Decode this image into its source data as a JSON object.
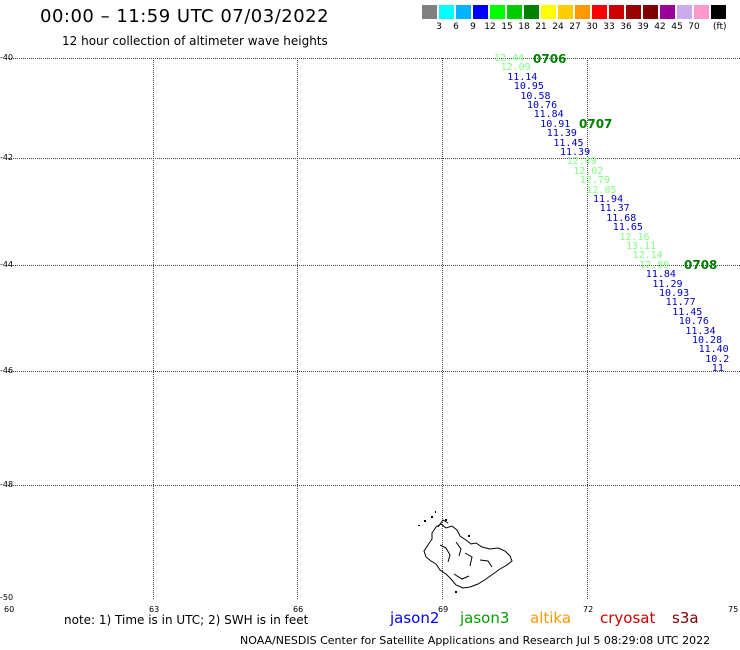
{
  "title": "00:00 – 11:59 UTC 07/03/2022",
  "subtitle": "12 hour collection of altimeter wave heights",
  "color_scale": {
    "colors": [
      "#808080",
      "#00ffff",
      "#00b4ff",
      "#0000ff",
      "#00ff00",
      "#00cc00",
      "#008000",
      "#ffff00",
      "#ffcc00",
      "#ff9900",
      "#ff0000",
      "#cc0000",
      "#990000",
      "#800000",
      "#990099",
      "#ccaaee",
      "#ff99cc",
      "#000000"
    ],
    "labels": [
      "3",
      "6",
      "9",
      "12",
      "15",
      "18",
      "21",
      "24",
      "27",
      "30",
      "33",
      "36",
      "39",
      "42",
      "45",
      "70"
    ],
    "unit": "(ft)"
  },
  "axes": {
    "lat_labels": [
      "-40",
      "-42",
      "-44",
      "-46",
      "-48",
      "-50"
    ],
    "lon_labels": [
      "60",
      "63",
      "66",
      "69",
      "72",
      "75"
    ]
  },
  "track_values": [
    {
      "v": "12.44",
      "c": "#80ff80"
    },
    {
      "v": "12.09",
      "c": "#80ff80"
    },
    {
      "v": "11.14",
      "c": "#0000c0"
    },
    {
      "v": "10.95",
      "c": "#0000c0"
    },
    {
      "v": "10.58",
      "c": "#0000c0"
    },
    {
      "v": "10.76",
      "c": "#0000c0"
    },
    {
      "v": "11.84",
      "c": "#0000c0"
    },
    {
      "v": "10.91",
      "c": "#0000c0"
    },
    {
      "v": "11.39",
      "c": "#0000c0"
    },
    {
      "v": "11.45",
      "c": "#0000c0"
    },
    {
      "v": "11.39",
      "c": "#0000c0"
    },
    {
      "v": "12.49",
      "c": "#80ff80"
    },
    {
      "v": "12.02",
      "c": "#80ff80"
    },
    {
      "v": "12.79",
      "c": "#80ff80"
    },
    {
      "v": "12.05",
      "c": "#80ff80"
    },
    {
      "v": "11.94",
      "c": "#0000c0"
    },
    {
      "v": "11.37",
      "c": "#0000c0"
    },
    {
      "v": "11.68",
      "c": "#0000c0"
    },
    {
      "v": "11.65",
      "c": "#0000c0"
    },
    {
      "v": "12.16",
      "c": "#80ff80"
    },
    {
      "v": "13.11",
      "c": "#80ff80"
    },
    {
      "v": "12.14",
      "c": "#80ff80"
    },
    {
      "v": "12.89",
      "c": "#80ff80"
    },
    {
      "v": "11.84",
      "c": "#0000c0"
    },
    {
      "v": "11.29",
      "c": "#0000c0"
    },
    {
      "v": "10.93",
      "c": "#0000c0"
    },
    {
      "v": "11.77",
      "c": "#0000c0"
    },
    {
      "v": "11.45",
      "c": "#0000c0"
    },
    {
      "v": "10.76",
      "c": "#0000c0"
    },
    {
      "v": "11.34",
      "c": "#0000c0"
    },
    {
      "v": "10.28",
      "c": "#0000c0"
    },
    {
      "v": "11.40",
      "c": "#0000c0"
    },
    {
      "v": "10.2",
      "c": "#0000c0"
    },
    {
      "v": "11",
      "c": "#0000c0"
    }
  ],
  "time_labels": [
    "0706",
    "0707",
    "0708"
  ],
  "note": "note: 1) Time is in UTC; 2) SWH is in feet",
  "satellites": [
    {
      "name": "jason2",
      "color": "#0000ff"
    },
    {
      "name": "jason3",
      "color": "#00a000"
    },
    {
      "name": "altika",
      "color": "#ff9900"
    },
    {
      "name": "cryosat",
      "color": "#cc0000"
    },
    {
      "name": "s3a",
      "color": "#800000"
    }
  ],
  "footer": "NOAA/NESDIS Center for Satellite Applications and Research    Jul  5 08:29:08 UTC 2022"
}
